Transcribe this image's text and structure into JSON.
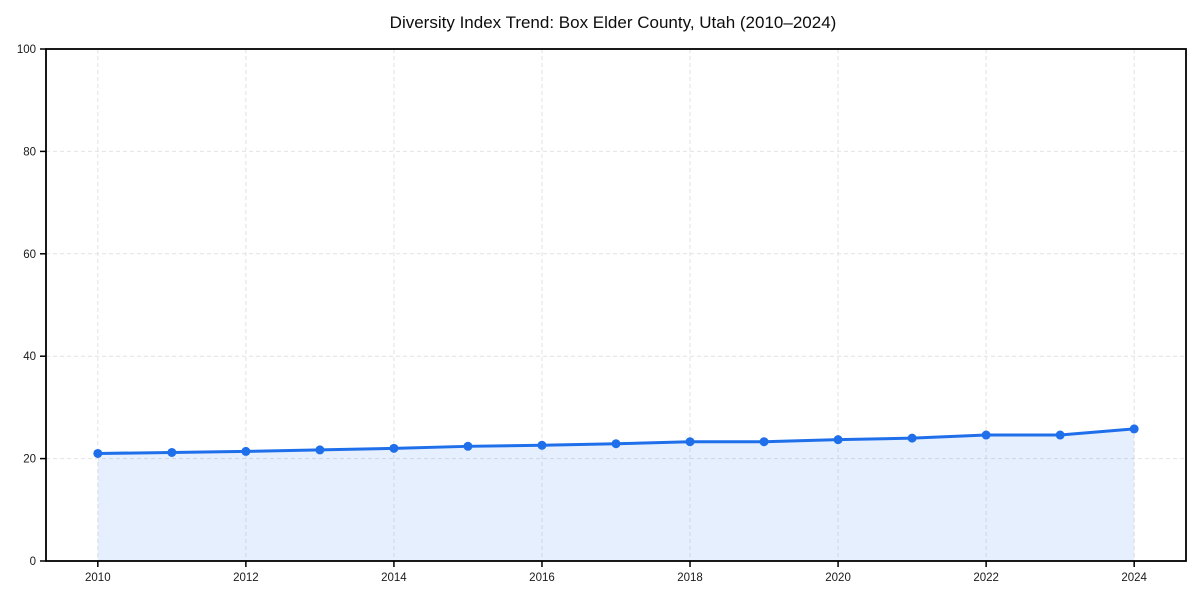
{
  "page": {
    "background": "#ffffff"
  },
  "chart_data": {
    "type": "line",
    "title": "Diversity Index Trend: Box Elder County, Utah (2010–2024)",
    "x": [
      2010,
      2011,
      2012,
      2013,
      2014,
      2015,
      2016,
      2017,
      2018,
      2019,
      2020,
      2021,
      2022,
      2023,
      2024
    ],
    "series": [
      {
        "name": "Diversity Index",
        "values": [
          21.0,
          21.2,
          21.4,
          21.7,
          22.0,
          22.4,
          22.6,
          22.9,
          23.3,
          23.3,
          23.7,
          24.0,
          24.6,
          24.6,
          25.8
        ]
      }
    ],
    "xlabel": "",
    "ylabel": "",
    "xlim": [
      2009.3,
      2024.7
    ],
    "ylim": [
      0,
      100
    ],
    "xticks": [
      2010,
      2012,
      2014,
      2016,
      2018,
      2020,
      2022,
      2024
    ],
    "yticks": [
      0,
      20,
      40,
      60,
      80,
      100
    ],
    "grid": true,
    "grid_style": "dashed",
    "legend": false,
    "area_fill": true,
    "marker": "circle",
    "colors": {
      "line": "#1f6feb",
      "fill": "#1f6feb",
      "fill_opacity": 0.11,
      "grid": "#e2e2e2",
      "spine": "#000000",
      "text": "#1a1a1a"
    }
  }
}
